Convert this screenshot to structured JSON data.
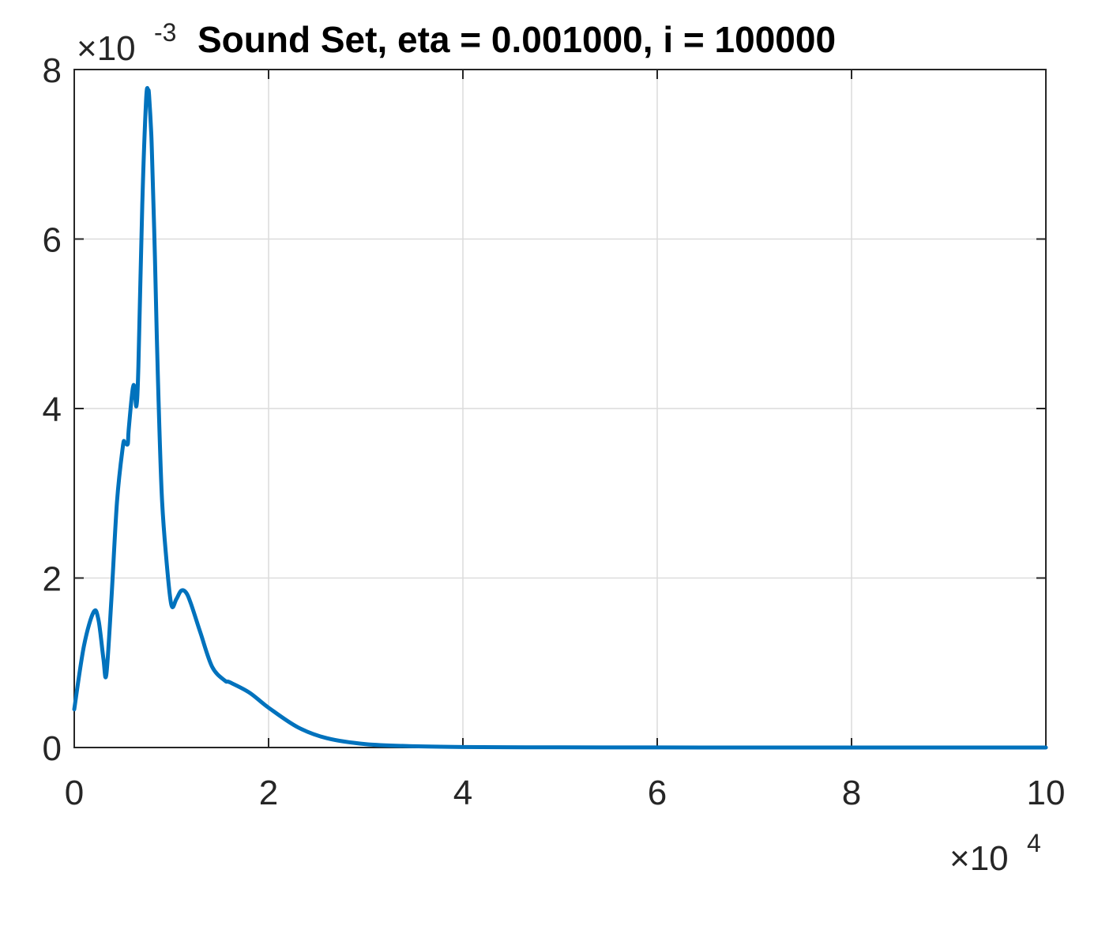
{
  "chart_data": {
    "type": "line",
    "title": "Sound Set, eta = 0.001000, i = 100000",
    "xlabel": "",
    "ylabel": "",
    "x_multiplier": {
      "base": "×10",
      "exponent": "4"
    },
    "y_multiplier": {
      "base": "×10",
      "exponent": "-3"
    },
    "xlim": [
      0,
      10
    ],
    "ylim": [
      0,
      8
    ],
    "x_ticks": [
      "0",
      "2",
      "4",
      "6",
      "8",
      "10"
    ],
    "y_ticks": [
      "0",
      "2",
      "4",
      "6",
      "8"
    ],
    "x_tick_values": [
      0,
      2,
      4,
      6,
      8,
      10
    ],
    "y_tick_values": [
      0,
      2,
      4,
      6,
      8
    ],
    "grid": true,
    "line_color": "#0072BD",
    "series": [
      {
        "x": [
          0,
          0.1,
          0.2,
          0.25,
          0.3,
          0.33,
          0.38,
          0.44,
          0.5,
          0.52,
          0.55,
          0.56,
          0.6,
          0.62,
          0.64,
          0.66,
          0.7,
          0.74,
          0.76,
          0.77,
          0.79,
          0.8,
          0.83,
          0.86,
          0.9,
          0.95,
          1.0,
          1.05,
          1.1,
          1.15,
          1.2,
          1.3,
          1.42,
          1.55,
          1.6,
          1.8,
          2.0,
          2.3,
          2.6,
          3.0,
          3.5,
          4.0,
          5.0,
          6.0,
          7.0,
          8.0,
          9.0,
          10.0
        ],
        "y": [
          0.45,
          1.2,
          1.6,
          1.5,
          1.05,
          0.86,
          1.7,
          2.9,
          3.55,
          3.6,
          3.58,
          3.75,
          4.22,
          4.25,
          4.03,
          4.5,
          6.4,
          7.65,
          7.75,
          7.7,
          7.3,
          7.0,
          5.8,
          4.4,
          3.0,
          2.2,
          1.68,
          1.75,
          1.85,
          1.83,
          1.7,
          1.35,
          0.95,
          0.79,
          0.77,
          0.65,
          0.47,
          0.24,
          0.11,
          0.04,
          0.015,
          0.006,
          0.002,
          0.001,
          0.0,
          0.0,
          0.0,
          0.0
        ]
      }
    ]
  }
}
